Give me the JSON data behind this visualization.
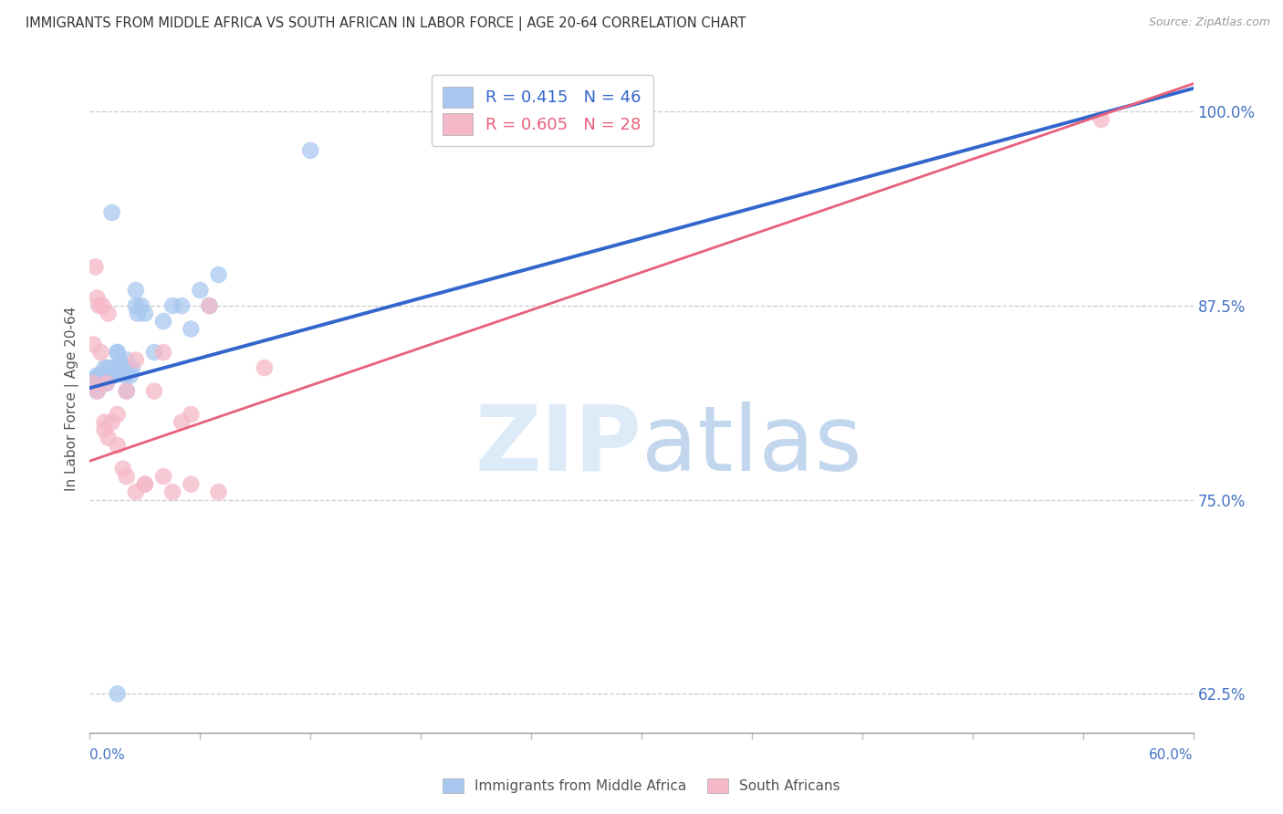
{
  "title": "IMMIGRANTS FROM MIDDLE AFRICA VS SOUTH AFRICAN IN LABOR FORCE | AGE 20-64 CORRELATION CHART",
  "source": "Source: ZipAtlas.com",
  "ylabel": "In Labor Force | Age 20-64",
  "r_blue": 0.415,
  "n_blue": 46,
  "r_pink": 0.605,
  "n_pink": 28,
  "legend_label_blue": "Immigrants from Middle Africa",
  "legend_label_pink": "South Africans",
  "blue_color": "#a8c8f0",
  "pink_color": "#f5b8c8",
  "blue_line_color": "#3366cc",
  "pink_line_color": "#e8607a",
  "blue_scatter_x": [
    0.2,
    0.3,
    0.4,
    0.5,
    0.6,
    0.7,
    0.8,
    0.9,
    1.0,
    1.1,
    1.2,
    1.3,
    1.4,
    1.5,
    1.6,
    1.7,
    1.8,
    1.9,
    2.0,
    2.1,
    2.2,
    2.3,
    2.5,
    2.6,
    2.8,
    3.0,
    3.5,
    4.0,
    4.5,
    5.0,
    5.5,
    6.0,
    6.5,
    7.0,
    0.3,
    0.4,
    0.5,
    0.6,
    0.8,
    1.0,
    1.2,
    1.5,
    2.0,
    2.5,
    12.0,
    1.5
  ],
  "blue_scatter_y": [
    82.5,
    82.8,
    82.0,
    83.0,
    82.5,
    82.8,
    83.0,
    82.5,
    83.5,
    83.0,
    83.5,
    83.0,
    83.5,
    84.5,
    83.5,
    83.8,
    83.5,
    83.0,
    84.0,
    83.5,
    83.0,
    83.5,
    87.5,
    87.0,
    87.5,
    87.0,
    84.5,
    86.5,
    87.5,
    87.5,
    86.0,
    88.5,
    87.5,
    89.5,
    82.8,
    83.0,
    82.5,
    82.8,
    83.5,
    83.0,
    93.5,
    84.5,
    82.0,
    88.5,
    97.5,
    62.5
  ],
  "pink_scatter_x": [
    0.2,
    0.5,
    0.8,
    1.0,
    1.5,
    2.0,
    2.5,
    3.5,
    4.0,
    5.0,
    5.5,
    6.5,
    9.5,
    0.3,
    0.4,
    0.7,
    0.9,
    1.2,
    1.8,
    3.0,
    4.5,
    7.0,
    55.0
  ],
  "pink_scatter_y": [
    82.5,
    87.5,
    80.0,
    87.0,
    80.5,
    82.0,
    84.0,
    82.0,
    84.5,
    80.0,
    80.5,
    87.5,
    83.5,
    90.0,
    88.0,
    87.5,
    82.5,
    80.0,
    77.0,
    76.0,
    75.5,
    75.5,
    99.5
  ],
  "pink_scatter_x2": [
    0.2,
    0.4,
    0.6,
    0.8,
    1.0,
    1.5,
    2.0,
    2.5,
    3.0,
    4.0,
    5.5
  ],
  "pink_scatter_y2": [
    85.0,
    82.0,
    84.5,
    79.5,
    79.0,
    78.5,
    76.5,
    75.5,
    76.0,
    76.5,
    76.0
  ],
  "xmin": 0.0,
  "xmax": 60.0,
  "ymin": 60.0,
  "ymax": 103.0,
  "ytick_vals": [
    100.0,
    87.5,
    75.0,
    62.5
  ],
  "ytick_labels": [
    "100.0%",
    "87.5%",
    "75.0%",
    "62.5%"
  ],
  "blue_line_x0": 0.0,
  "blue_line_x1": 60.0,
  "blue_line_y0": 82.2,
  "blue_line_y1": 101.5,
  "pink_line_x0": 0.0,
  "pink_line_x1": 60.0,
  "pink_line_y0": 77.5,
  "pink_line_y1": 101.8
}
